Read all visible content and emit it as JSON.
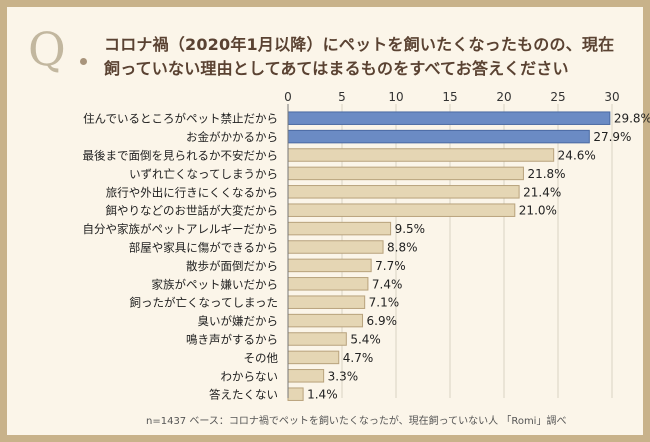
{
  "header": {
    "q_letter": "Q",
    "title_line1": "コロナ禍（2020年1月以降）にペットを飼いたくなったものの、現在",
    "title_line2": "飼っていない理由としてあてはまるものをすべてお答えください"
  },
  "footnote": "n=1437 ベース：コロナ禍でペットを飼いたくなったが、現在飼っていない人 「Romi」調べ",
  "colors": {
    "highlight_bar": "#6b8bc4",
    "highlight_border": "#4a6aa3",
    "normal_bar": "#e5d6b4",
    "normal_border": "#b8a27c",
    "grid": "#d9d2c4"
  },
  "chart_data": {
    "type": "bar",
    "orientation": "horizontal",
    "xlim": [
      0,
      30
    ],
    "ticks": [
      0,
      5,
      10,
      15,
      20,
      25,
      30
    ],
    "highlight_count": 2,
    "categories": [
      "住んでいるところがペット禁止だから",
      "お金がかかるから",
      "最後まで面倒を見られるか不安だから",
      "いずれ亡くなってしまうから",
      "旅行や外出に行きにくくなるから",
      "餌やりなどのお世話が大変だから",
      "自分や家族がペットアレルギーだから",
      "部屋や家具に傷ができるから",
      "散歩が面倒だから",
      "家族がペット嫌いだから",
      "飼ったが亡くなってしまった",
      "臭いが嫌だから",
      "鳴き声がするから",
      "その他",
      "わからない",
      "答えたくない"
    ],
    "values": [
      29.8,
      27.9,
      24.6,
      21.8,
      21.4,
      21.0,
      9.5,
      8.8,
      7.7,
      7.4,
      7.1,
      6.9,
      5.4,
      4.7,
      3.3,
      1.4
    ],
    "value_labels": [
      "29.8%",
      "27.9%",
      "24.6%",
      "21.8%",
      "21.4%",
      "21.0%",
      "9.5%",
      "8.8%",
      "7.7%",
      "7.4%",
      "7.1%",
      "6.9%",
      "5.4%",
      "4.7%",
      "3.3%",
      "1.4%"
    ]
  }
}
